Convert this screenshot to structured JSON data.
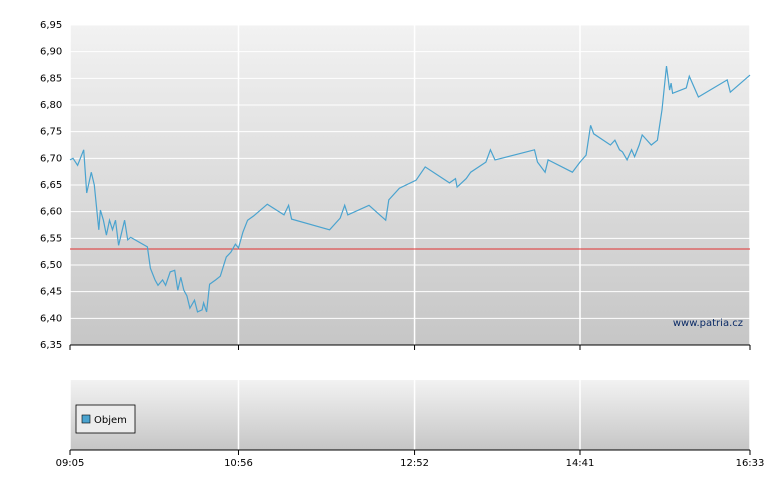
{
  "chart_data": {
    "type": "line",
    "color": "#4aa3cf",
    "x": [
      "09:05",
      "09:07",
      "09:10",
      "09:14",
      "09:16",
      "09:19",
      "09:21",
      "09:24",
      "09:25",
      "09:27",
      "09:29",
      "09:31",
      "09:33",
      "09:35",
      "09:37",
      "09:41",
      "09:43",
      "09:45",
      "09:56",
      "09:58",
      "10:01",
      "10:03",
      "10:06",
      "10:08",
      "10:11",
      "10:14",
      "10:16",
      "10:18",
      "10:20",
      "10:22",
      "10:24",
      "10:27",
      "10:29",
      "10:32",
      "10:33",
      "10:35",
      "10:37",
      "10:41",
      "10:44",
      "10:48",
      "10:51",
      "10:54",
      "10:56",
      "10:59",
      "11:02",
      "11:06",
      "11:15",
      "11:26",
      "11:29",
      "11:31",
      "11:56",
      "12:03",
      "12:06",
      "12:08",
      "12:22",
      "12:33",
      "12:35",
      "12:42",
      "12:53",
      "12:59",
      "13:15",
      "13:19",
      "13:20",
      "13:26",
      "13:29",
      "13:39",
      "13:42",
      "13:45",
      "14:11",
      "14:13",
      "14:18",
      "14:20",
      "14:36",
      "14:41",
      "14:45",
      "14:48",
      "14:50",
      "15:01",
      "15:04",
      "15:07",
      "15:09",
      "15:12",
      "15:15",
      "15:17",
      "15:20",
      "15:22",
      "15:28",
      "15:32",
      "15:35",
      "15:38",
      "15:40",
      "15:41",
      "15:42",
      "15:51",
      "15:53",
      "15:59",
      "16:18",
      "16:20",
      "16:33"
    ],
    "values": [
      6.697,
      6.7,
      6.687,
      6.716,
      6.635,
      6.674,
      6.65,
      6.566,
      6.603,
      6.584,
      6.556,
      6.584,
      6.566,
      6.584,
      6.537,
      6.584,
      6.547,
      6.552,
      6.534,
      6.494,
      6.472,
      6.462,
      6.472,
      6.462,
      6.487,
      6.49,
      6.453,
      6.477,
      6.453,
      6.442,
      6.419,
      6.434,
      6.412,
      6.416,
      6.429,
      6.412,
      6.464,
      6.472,
      6.479,
      6.515,
      6.524,
      6.539,
      6.532,
      6.562,
      6.584,
      6.592,
      6.614,
      6.594,
      6.612,
      6.586,
      6.566,
      6.588,
      6.612,
      6.594,
      6.612,
      6.584,
      6.622,
      6.644,
      6.659,
      6.684,
      6.654,
      6.662,
      6.646,
      6.662,
      6.674,
      6.693,
      6.716,
      6.697,
      6.716,
      6.693,
      6.674,
      6.697,
      6.674,
      6.693,
      6.706,
      6.762,
      6.746,
      6.725,
      6.734,
      6.716,
      6.712,
      6.697,
      6.716,
      6.703,
      6.725,
      6.744,
      6.725,
      6.734,
      6.791,
      6.873,
      6.828,
      6.841,
      6.822,
      6.832,
      6.854,
      6.815,
      6.847,
      6.824,
      6.856
    ],
    "xlim": [
      "09:05",
      "16:33"
    ],
    "xticks": [
      "09:05",
      "10:56",
      "12:52",
      "14:41",
      "16:33"
    ],
    "ylim": [
      6.35,
      6.95
    ],
    "yticks": [
      {
        "value": 6.35,
        "label": "6,35"
      },
      {
        "value": 6.4,
        "label": "6,40"
      },
      {
        "value": 6.45,
        "label": "6,45"
      },
      {
        "value": 6.5,
        "label": "6,50"
      },
      {
        "value": 6.55,
        "label": "6,55"
      },
      {
        "value": 6.6,
        "label": "6,60"
      },
      {
        "value": 6.65,
        "label": "6,65"
      },
      {
        "value": 6.7,
        "label": "6,70"
      },
      {
        "value": 6.75,
        "label": "6,75"
      },
      {
        "value": 6.8,
        "label": "6,80"
      },
      {
        "value": 6.85,
        "label": "6,85"
      },
      {
        "value": 6.9,
        "label": "6,90"
      },
      {
        "value": 6.95,
        "label": "6,95"
      }
    ],
    "grid": true,
    "reference_line": 6.53,
    "reference_color": "#e03030",
    "watermark": "www.patria.cz",
    "volume_legend": "Objem",
    "volume_color": "#4aa3cf"
  }
}
